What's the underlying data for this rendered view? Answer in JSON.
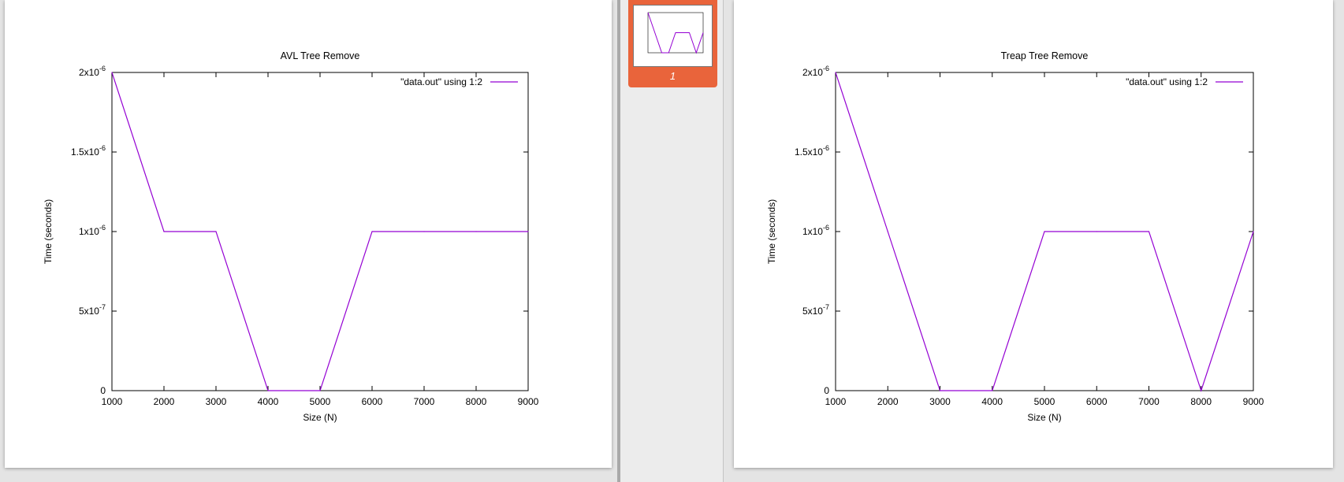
{
  "thumbnails": [
    {
      "label": "1",
      "selected": true
    }
  ],
  "colors": {
    "line": "#9400d3",
    "selection": "#e9643b"
  },
  "chart_data": [
    {
      "type": "line",
      "title": "AVL Tree Remove",
      "xlabel": "Size (N)",
      "ylabel": "Time (seconds)",
      "xlim": [
        1000,
        9000
      ],
      "ylim": [
        0,
        2e-06
      ],
      "xticks": [
        "1000",
        "2000",
        "3000",
        "4000",
        "5000",
        "6000",
        "7000",
        "8000",
        "9000"
      ],
      "yticks": [
        {
          "value": 0,
          "base": "0",
          "exp": ""
        },
        {
          "value": 5e-07,
          "base": "5x10",
          "exp": "-7"
        },
        {
          "value": 1e-06,
          "base": "1x10",
          "exp": "-6"
        },
        {
          "value": 1.5e-06,
          "base": "1.5x10",
          "exp": "-6"
        },
        {
          "value": 2e-06,
          "base": "2x10",
          "exp": "-6"
        }
      ],
      "legend": "top-right",
      "series": [
        {
          "name": "\"data.out\" using 1:2",
          "x": [
            1000,
            2000,
            3000,
            4000,
            5000,
            6000,
            7000,
            8000,
            9000
          ],
          "y": [
            2e-06,
            1e-06,
            1e-06,
            0,
            0,
            1e-06,
            1e-06,
            1e-06,
            1e-06
          ]
        }
      ]
    },
    {
      "type": "line",
      "title": "Treap Tree Remove",
      "xlabel": "Size (N)",
      "ylabel": "Time (seconds)",
      "xlim": [
        1000,
        9000
      ],
      "ylim": [
        0,
        2e-06
      ],
      "xticks": [
        "1000",
        "2000",
        "3000",
        "4000",
        "5000",
        "6000",
        "7000",
        "8000",
        "9000"
      ],
      "yticks": [
        {
          "value": 0,
          "base": "0",
          "exp": ""
        },
        {
          "value": 5e-07,
          "base": "5x10",
          "exp": "-7"
        },
        {
          "value": 1e-06,
          "base": "1x10",
          "exp": "-6"
        },
        {
          "value": 1.5e-06,
          "base": "1.5x10",
          "exp": "-6"
        },
        {
          "value": 2e-06,
          "base": "2x10",
          "exp": "-6"
        }
      ],
      "legend": "top-right",
      "series": [
        {
          "name": "\"data.out\" using 1:2",
          "x": [
            1000,
            2000,
            3000,
            4000,
            5000,
            6000,
            7000,
            8000,
            9000
          ],
          "y": [
            2e-06,
            1e-06,
            0,
            0,
            1e-06,
            1e-06,
            1e-06,
            0,
            1e-06
          ]
        }
      ]
    }
  ]
}
